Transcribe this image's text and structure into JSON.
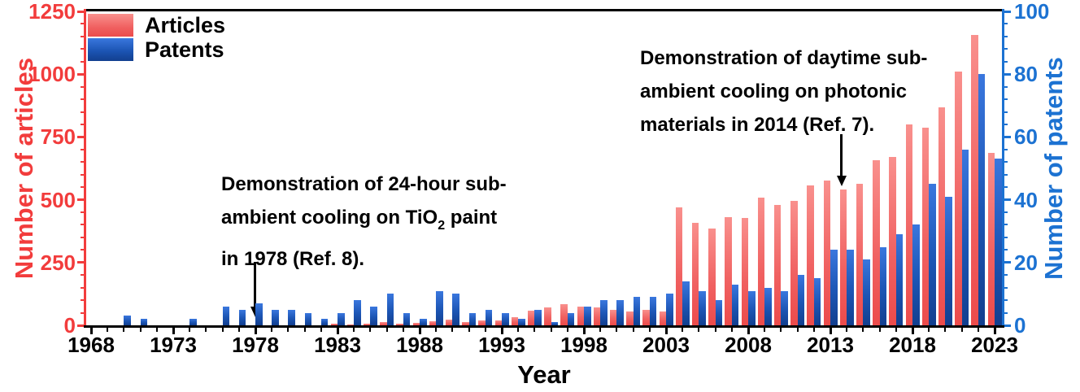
{
  "chart_data": {
    "type": "bar",
    "title": "",
    "xlabel": "Year",
    "ylabel_left": "Number of articles",
    "ylabel_right": "Number of patents",
    "grid": false,
    "legend_position": "top-left",
    "x": [
      1968,
      1969,
      1970,
      1971,
      1972,
      1973,
      1974,
      1975,
      1976,
      1977,
      1978,
      1979,
      1980,
      1981,
      1982,
      1983,
      1984,
      1985,
      1986,
      1987,
      1988,
      1989,
      1990,
      1991,
      1992,
      1993,
      1994,
      1995,
      1996,
      1997,
      1998,
      1999,
      2000,
      2001,
      2002,
      2003,
      2004,
      2005,
      2006,
      2007,
      2008,
      2009,
      2010,
      2011,
      2012,
      2013,
      2014,
      2015,
      2016,
      2017,
      2018,
      2019,
      2020,
      2021,
      2022,
      2023
    ],
    "series": [
      {
        "name": "Articles",
        "axis": "left",
        "color": "#ee4b4b",
        "values": [
          0,
          0,
          0,
          0,
          0,
          0,
          0,
          0,
          0,
          0,
          0,
          0,
          0,
          0,
          0,
          8,
          4,
          6,
          12,
          8,
          9,
          15,
          23,
          14,
          21,
          21,
          31,
          58,
          70,
          85,
          75,
          72,
          62,
          56,
          62,
          55,
          468,
          408,
          386,
          432,
          428,
          510,
          478,
          494,
          556,
          576,
          540,
          562,
          656,
          670,
          800,
          786,
          868,
          1010,
          1156,
          686
        ]
      },
      {
        "name": "Patents",
        "axis": "right",
        "color": "#1d55b3",
        "values": [
          0,
          0,
          3,
          2,
          0,
          0,
          2,
          0,
          6,
          5,
          7,
          5,
          5,
          4,
          2,
          4,
          8,
          6,
          10,
          4,
          2,
          11,
          10,
          4,
          5,
          4,
          2,
          5,
          1,
          4,
          6,
          8,
          8,
          9,
          9,
          10,
          14,
          11,
          8,
          13,
          11,
          12,
          11,
          16,
          15,
          24,
          24,
          21,
          25,
          29,
          32,
          45,
          41,
          56,
          80,
          53
        ]
      }
    ],
    "left_axis": {
      "min": 0,
      "max": 1250,
      "minor_step": 50,
      "tick_values": [
        0,
        250,
        500,
        750,
        1000,
        1250
      ],
      "tick_labels": [
        "0",
        "250",
        "500",
        "750",
        "1000",
        "1250"
      ]
    },
    "right_axis": {
      "min": 0,
      "max": 100,
      "minor_step": 4,
      "tick_values": [
        0,
        20,
        40,
        60,
        80,
        100
      ],
      "tick_labels": [
        "0",
        "20",
        "40",
        "60",
        "80",
        "100"
      ]
    },
    "x_axis": {
      "minor_step": 1,
      "major_ticks": [
        1968,
        1973,
        1978,
        1983,
        1988,
        1993,
        1998,
        2003,
        2008,
        2013,
        2018,
        2023
      ],
      "tick_labels": [
        "1968",
        "1973",
        "1978",
        "1983",
        "1988",
        "1993",
        "1998",
        "2003",
        "2008",
        "2013",
        "2018",
        "2023"
      ]
    }
  },
  "annotations": [
    {
      "line1": "Demonstration of 24-hour sub-",
      "line2_pre": "ambient cooling on TiO",
      "line2_sub": "2",
      "line2_post": " paint",
      "line3": "in 1978 (Ref. 8).",
      "target_year": "1978"
    },
    {
      "line1": "Demonstration of daytime sub-",
      "line2": "ambient cooling on photonic",
      "line3": "materials in 2014 (Ref. 7).",
      "target_year": "2014"
    }
  ],
  "colors": {
    "articles_bar": "#ee4b4b",
    "patents_bar": "#1d55b3",
    "left_axis": "#f23c3c",
    "right_axis": "#1c72d2",
    "frame": "#000000"
  }
}
